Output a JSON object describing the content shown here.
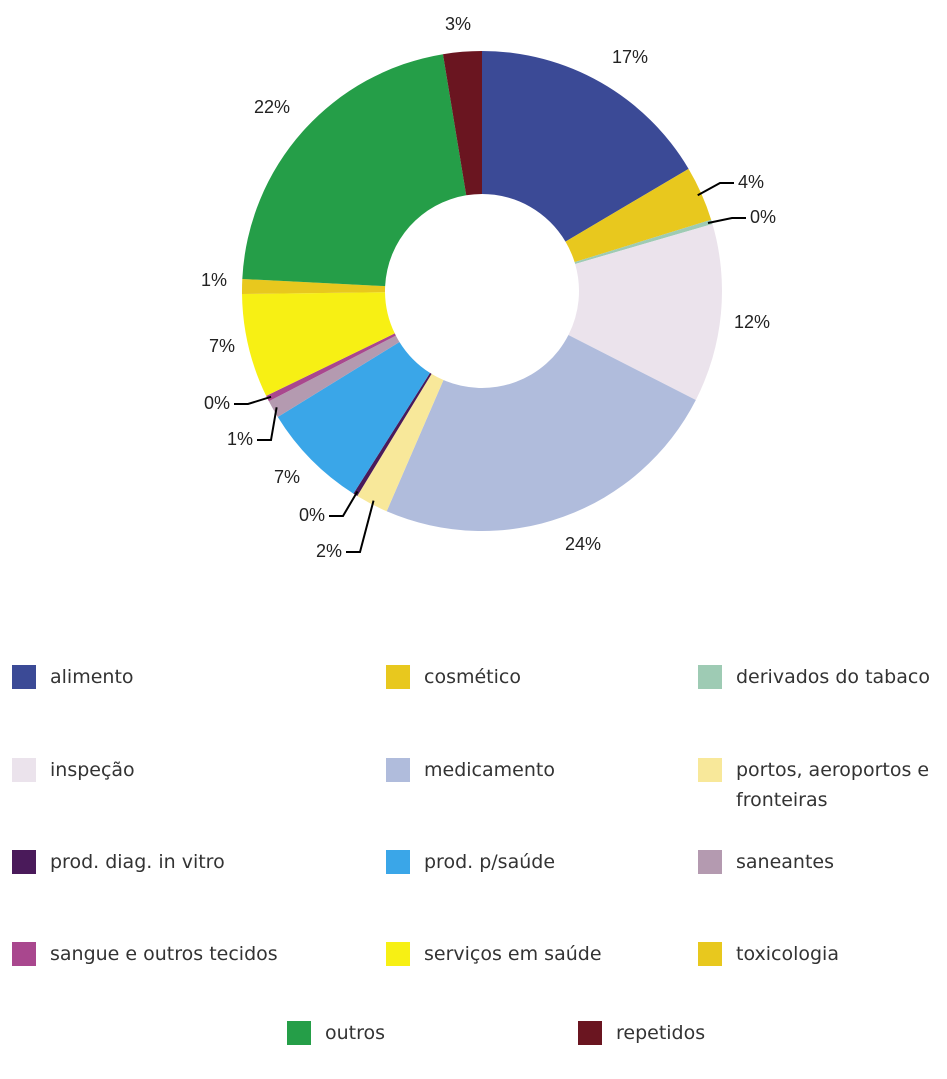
{
  "chart_data": {
    "type": "donut",
    "categories": [
      "alimento",
      "cosmético",
      "derivados do tabaco",
      "inspeção",
      "medicamento",
      "portos, aeroportos e fronteiras",
      "prod. diag. in vitro",
      "prod. p/saúde",
      "saneantes",
      "sangue e outros tecidos",
      "serviços em saúde",
      "toxicologia",
      "outros",
      "repetidos"
    ],
    "values": [
      16.5,
      3.7,
      0.3,
      12.0,
      24.0,
      2.2,
      0.3,
      7.2,
      1.2,
      0.4,
      7.0,
      1.0,
      21.6,
      2.6
    ],
    "value_labels": [
      "17%",
      "4%",
      "0%",
      "12%",
      "24%",
      "2%",
      "0%",
      "7%",
      "1%",
      "0%",
      "7%",
      "1%",
      "22%",
      "3%"
    ],
    "colors": [
      "#3b4a96",
      "#e8c81e",
      "#9ecbb4",
      "#ebe3ec",
      "#b0bcdc",
      "#f8e89a",
      "#4a1a5a",
      "#3aa6e8",
      "#b49ab0",
      "#a9478e",
      "#f7f014",
      "#e8c81e",
      "#259e48",
      "#6a1520"
    ]
  }
}
